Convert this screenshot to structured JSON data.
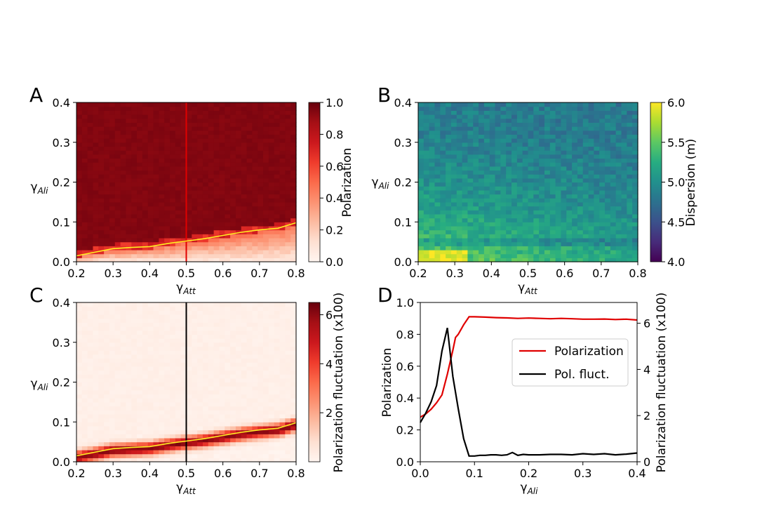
{
  "panels": [
    {
      "letter": "A",
      "xlabel_main": "γ",
      "xlabel_sub": "Att",
      "ylabel_main": "γ",
      "ylabel_sub": "Ali",
      "cbar_label": "Polarization"
    },
    {
      "letter": "B",
      "xlabel_main": "γ",
      "xlabel_sub": "Att",
      "ylabel_main": "γ",
      "ylabel_sub": "Ali",
      "cbar_label": "Dispersion (m)"
    },
    {
      "letter": "C",
      "xlabel_main": "γ",
      "xlabel_sub": "Att",
      "ylabel_main": "γ",
      "ylabel_sub": "Ali",
      "cbar_label": "Polarization fluctuation  (x100)"
    },
    {
      "letter": "D",
      "xlabel_main": "γ",
      "xlabel_sub": "Ali",
      "ylabel": "Polarization",
      "ylabel_right": "Polarization fluctuation (x100)"
    }
  ],
  "chart_data": [
    {
      "id": "A",
      "type": "heatmap",
      "title": "",
      "x_range": [
        0.2,
        0.8
      ],
      "y_range": [
        0,
        0.4
      ],
      "x_ticks": [
        "0.2",
        "0.3",
        "0.4",
        "0.5",
        "0.6",
        "0.7",
        "0.8"
      ],
      "y_ticks": [
        "0.0",
        "0.1",
        "0.2",
        "0.3",
        "0.4"
      ],
      "colormap": "Reds",
      "cbar_range": [
        0,
        1
      ],
      "cbar_ticks": [
        "0.0",
        "0.2",
        "0.4",
        "0.6",
        "0.8",
        "1.0"
      ],
      "description_value": "Polarization ≈ 0.98 above the transition line, low (≈0.05–0.4) below it",
      "vertical_line": {
        "x": 0.5,
        "color": "#e00000"
      },
      "transition_curve": {
        "color": "#ffee22",
        "x": [
          0.2,
          0.25,
          0.3,
          0.35,
          0.4,
          0.45,
          0.5,
          0.55,
          0.6,
          0.65,
          0.7,
          0.75,
          0.8
        ],
        "y": [
          0.015,
          0.024,
          0.033,
          0.036,
          0.038,
          0.046,
          0.052,
          0.058,
          0.066,
          0.074,
          0.08,
          0.084,
          0.098
        ]
      }
    },
    {
      "id": "B",
      "type": "heatmap",
      "title": "",
      "x_range": [
        0.2,
        0.8
      ],
      "y_range": [
        0,
        0.4
      ],
      "x_ticks": [
        "0.2",
        "0.3",
        "0.4",
        "0.5",
        "0.6",
        "0.7",
        "0.8"
      ],
      "y_ticks": [
        "0.0",
        "0.1",
        "0.2",
        "0.3",
        "0.4"
      ],
      "colormap": "viridis",
      "cbar_range": [
        4.0,
        6.0
      ],
      "cbar_ticks": [
        "4.0",
        "4.5",
        "5.0",
        "5.5",
        "6.0"
      ],
      "description_value": "Dispersion highest (~6.0) at low γAli and low γAtt, decreasing to ~4.6 at high γAli"
    },
    {
      "id": "C",
      "type": "heatmap",
      "title": "",
      "x_range": [
        0.2,
        0.8
      ],
      "y_range": [
        0,
        0.4
      ],
      "x_ticks": [
        "0.2",
        "0.3",
        "0.4",
        "0.5",
        "0.6",
        "0.7",
        "0.8"
      ],
      "y_ticks": [
        "0.0",
        "0.1",
        "0.2",
        "0.3",
        "0.4"
      ],
      "colormap": "Reds",
      "cbar_range": [
        0,
        6.5
      ],
      "cbar_ticks": [
        "2",
        "4",
        "6"
      ],
      "description_value": "Fluctuation near 0 everywhere except a band (~4–6.5) along the transition line",
      "vertical_line": {
        "x": 0.5,
        "color": "#000000"
      },
      "transition_curve": {
        "color": "#ffee22",
        "x": [
          0.2,
          0.25,
          0.3,
          0.35,
          0.4,
          0.45,
          0.5,
          0.55,
          0.6,
          0.65,
          0.7,
          0.75,
          0.8
        ],
        "y": [
          0.015,
          0.024,
          0.033,
          0.036,
          0.038,
          0.046,
          0.052,
          0.058,
          0.066,
          0.074,
          0.08,
          0.084,
          0.098
        ]
      }
    },
    {
      "id": "D",
      "type": "line",
      "title": "",
      "xlim": [
        0.0,
        0.4
      ],
      "ylim": [
        0.0,
        1.0
      ],
      "ylim_right": [
        0,
        6.9
      ],
      "x_ticks": [
        "0.0",
        "0.1",
        "0.2",
        "0.3",
        "0.4"
      ],
      "y_ticks": [
        "0.0",
        "0.2",
        "0.4",
        "0.6",
        "0.8",
        "1.0"
      ],
      "y_ticks_right": [
        "0",
        "2",
        "4",
        "6"
      ],
      "legend_position": "center-right",
      "series": [
        {
          "name": "Polarization",
          "axis": "left",
          "color": "#e00000",
          "x": [
            0.0,
            0.01,
            0.02,
            0.03,
            0.04,
            0.05,
            0.06,
            0.065,
            0.07,
            0.08,
            0.09,
            0.1,
            0.12,
            0.14,
            0.16,
            0.18,
            0.2,
            0.22,
            0.24,
            0.26,
            0.28,
            0.3,
            0.32,
            0.34,
            0.36,
            0.38,
            0.4
          ],
          "y": [
            0.28,
            0.3,
            0.33,
            0.37,
            0.42,
            0.55,
            0.7,
            0.78,
            0.8,
            0.86,
            0.91,
            0.91,
            0.908,
            0.905,
            0.903,
            0.9,
            0.902,
            0.9,
            0.898,
            0.9,
            0.898,
            0.895,
            0.895,
            0.896,
            0.893,
            0.895,
            0.89
          ]
        },
        {
          "name": "Pol. fluct.",
          "axis": "right",
          "color": "#000000",
          "x": [
            0.0,
            0.01,
            0.02,
            0.03,
            0.04,
            0.05,
            0.06,
            0.07,
            0.08,
            0.09,
            0.1,
            0.11,
            0.12,
            0.13,
            0.14,
            0.15,
            0.16,
            0.17,
            0.18,
            0.19,
            0.2,
            0.22,
            0.24,
            0.26,
            0.28,
            0.3,
            0.32,
            0.34,
            0.36,
            0.38,
            0.4
          ],
          "y": [
            1.7,
            2.1,
            2.6,
            3.3,
            4.8,
            5.8,
            3.7,
            2.3,
            1.0,
            0.25,
            0.25,
            0.28,
            0.28,
            0.3,
            0.3,
            0.28,
            0.3,
            0.4,
            0.28,
            0.32,
            0.3,
            0.3,
            0.32,
            0.32,
            0.3,
            0.35,
            0.32,
            0.35,
            0.3,
            0.33,
            0.38
          ]
        }
      ]
    }
  ]
}
